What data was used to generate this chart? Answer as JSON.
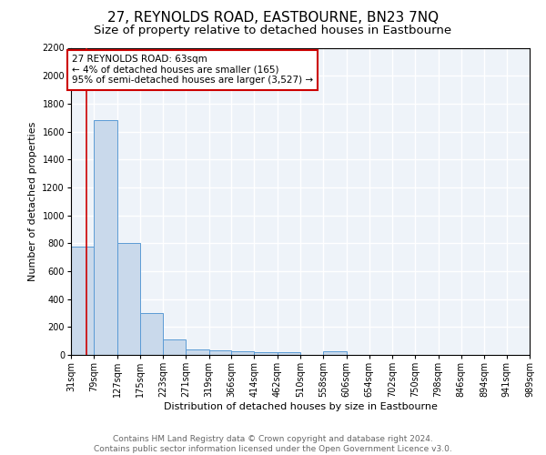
{
  "title": "27, REYNOLDS ROAD, EASTBOURNE, BN23 7NQ",
  "subtitle": "Size of property relative to detached houses in Eastbourne",
  "xlabel": "Distribution of detached houses by size in Eastbourne",
  "ylabel": "Number of detached properties",
  "bin_edges": [
    31,
    79,
    127,
    175,
    223,
    271,
    319,
    366,
    414,
    462,
    510,
    558,
    606,
    654,
    702,
    750,
    798,
    846,
    894,
    941,
    989
  ],
  "bar_heights": [
    775,
    1680,
    800,
    300,
    110,
    40,
    30,
    25,
    20,
    20,
    0,
    25,
    0,
    0,
    0,
    0,
    0,
    0,
    0,
    0
  ],
  "bar_color": "#c9d9eb",
  "bar_edge_color": "#5b9bd5",
  "red_line_x": 63,
  "red_line_color": "#cc0000",
  "ylim": [
    0,
    2200
  ],
  "yticks": [
    0,
    200,
    400,
    600,
    800,
    1000,
    1200,
    1400,
    1600,
    1800,
    2000,
    2200
  ],
  "annotation_text": "27 REYNOLDS ROAD: 63sqm\n← 4% of detached houses are smaller (165)\n95% of semi-detached houses are larger (3,527) →",
  "annotation_box_color": "#ffffff",
  "annotation_box_edge_color": "#cc0000",
  "footer_text": "Contains HM Land Registry data © Crown copyright and database right 2024.\nContains public sector information licensed under the Open Government Licence v3.0.",
  "bg_color": "#eef3f9",
  "grid_color": "#ffffff",
  "title_fontsize": 11,
  "subtitle_fontsize": 9.5,
  "tick_label_fontsize": 7,
  "axis_label_fontsize": 8,
  "footer_fontsize": 6.5
}
